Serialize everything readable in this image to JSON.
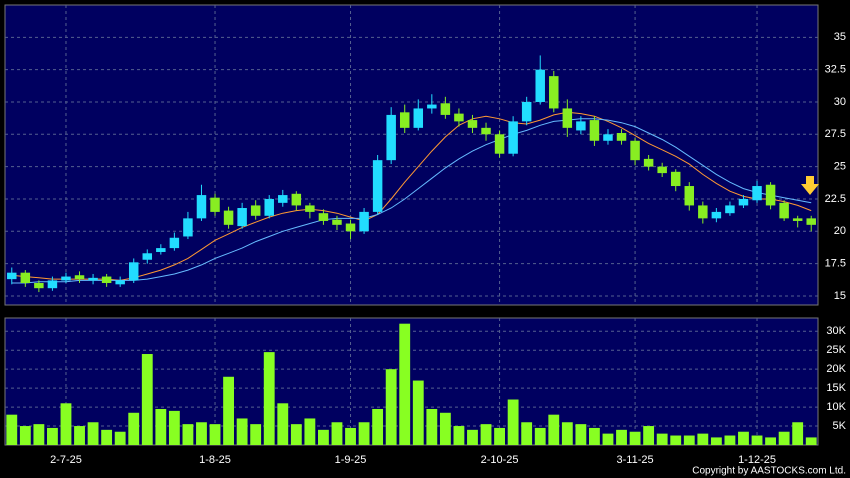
{
  "chart_data": {
    "type": "candlestick",
    "categories": [
      null,
      null,
      null,
      null,
      "2-7-25",
      null,
      null,
      null,
      null,
      null,
      null,
      null,
      null,
      null,
      null,
      "1-8-25",
      null,
      null,
      null,
      null,
      null,
      null,
      null,
      null,
      null,
      "1-9-25",
      null,
      null,
      null,
      null,
      null,
      null,
      null,
      null,
      null,
      null,
      "2-10-25",
      null,
      null,
      null,
      null,
      null,
      null,
      null,
      null,
      null,
      "3-11-25",
      null,
      null,
      null,
      null,
      null,
      null,
      null,
      null,
      "1-12-25",
      null,
      null,
      null,
      null
    ],
    "open": [
      16.3,
      16.8,
      16.0,
      15.6,
      16.2,
      16.6,
      16.2,
      16.5,
      15.9,
      16.2,
      17.8,
      18.4,
      18.7,
      19.6,
      21.0,
      22.6,
      21.6,
      20.4,
      22.0,
      21.2,
      22.2,
      22.9,
      22.0,
      21.4,
      20.9,
      20.6,
      20.0,
      21.5,
      25.5,
      29.2,
      28.0,
      29.5,
      29.9,
      29.1,
      28.6,
      28.0,
      27.5,
      26.0,
      28.5,
      30.0,
      32.0,
      29.5,
      27.8,
      28.6,
      27.0,
      27.6,
      27.0,
      25.6,
      25.0,
      24.6,
      23.5,
      22.0,
      21.0,
      21.4,
      22.0,
      22.4,
      23.6,
      22.2,
      21.0,
      21.0
    ],
    "high": [
      17.2,
      17.0,
      16.2,
      16.5,
      16.8,
      16.9,
      16.7,
      16.7,
      16.5,
      17.9,
      18.6,
      19.0,
      19.9,
      21.5,
      23.6,
      22.9,
      21.9,
      22.2,
      22.4,
      22.8,
      23.2,
      23.1,
      22.2,
      21.7,
      21.2,
      20.9,
      21.8,
      25.9,
      29.6,
      29.8,
      30.2,
      30.6,
      30.4,
      29.5,
      29.0,
      28.4,
      27.8,
      28.9,
      30.4,
      33.6,
      32.4,
      30.2,
      28.9,
      28.9,
      27.9,
      27.9,
      27.2,
      25.9,
      25.3,
      24.8,
      23.8,
      22.3,
      21.8,
      22.3,
      22.8,
      23.9,
      23.8,
      22.4,
      21.2,
      21.2
    ],
    "low": [
      15.9,
      15.7,
      15.3,
      15.4,
      16.0,
      16.0,
      15.9,
      15.7,
      15.7,
      16.0,
      17.5,
      18.2,
      18.5,
      19.4,
      20.8,
      21.2,
      20.2,
      20.2,
      20.9,
      21.0,
      21.9,
      21.6,
      21.0,
      20.5,
      20.1,
      19.4,
      19.8,
      21.3,
      25.2,
      27.6,
      27.8,
      29.1,
      28.7,
      28.1,
      27.6,
      27.0,
      25.7,
      25.8,
      28.2,
      29.8,
      29.2,
      27.3,
      27.5,
      26.6,
      26.7,
      26.7,
      25.1,
      24.7,
      24.2,
      23.1,
      21.6,
      20.6,
      20.7,
      21.2,
      21.8,
      22.2,
      21.7,
      20.8,
      20.3,
      20.0
    ],
    "close": [
      16.8,
      16.0,
      15.6,
      16.2,
      16.5,
      16.3,
      16.4,
      16.0,
      16.2,
      17.6,
      18.3,
      18.7,
      19.5,
      21.0,
      22.8,
      21.5,
      20.5,
      21.8,
      21.2,
      22.5,
      22.8,
      22.0,
      21.5,
      20.8,
      20.5,
      20.0,
      21.5,
      25.5,
      29.0,
      28.0,
      29.5,
      29.8,
      29.0,
      28.5,
      28.0,
      27.5,
      26.0,
      28.5,
      30.0,
      32.5,
      29.5,
      28.0,
      28.5,
      27.0,
      27.5,
      27.0,
      25.5,
      25.0,
      24.5,
      23.5,
      22.0,
      21.0,
      21.5,
      22.0,
      22.5,
      23.5,
      22.0,
      21.0,
      20.8,
      20.5
    ],
    "up_color": "#22ddff",
    "down_color": "#88ee22",
    "moving_averages": [
      {
        "color": "#ff9933",
        "values": [
          16.6,
          16.5,
          16.4,
          16.3,
          16.3,
          16.3,
          16.3,
          16.3,
          16.2,
          16.4,
          16.7,
          17.0,
          17.4,
          17.9,
          18.6,
          19.3,
          19.8,
          20.3,
          20.7,
          21.1,
          21.4,
          21.6,
          21.7,
          21.6,
          21.4,
          21.1,
          20.8,
          21.3,
          22.5,
          23.8,
          25.0,
          26.2,
          27.3,
          28.2,
          28.7,
          28.9,
          28.7,
          28.4,
          28.3,
          28.6,
          29.0,
          29.2,
          29.1,
          28.9,
          28.5,
          28.0,
          27.4,
          26.8,
          26.3,
          25.8,
          25.2,
          24.4,
          23.7,
          23.1,
          22.7,
          22.5,
          22.5,
          22.3,
          22.0,
          21.6
        ]
      },
      {
        "color": "#66bbff",
        "values": [
          16.0,
          16.0,
          16.1,
          16.1,
          16.1,
          16.2,
          16.2,
          16.2,
          16.2,
          16.2,
          16.3,
          16.5,
          16.7,
          17.0,
          17.4,
          17.9,
          18.3,
          18.7,
          19.2,
          19.6,
          20.0,
          20.3,
          20.6,
          20.9,
          21.0,
          21.0,
          21.0,
          21.3,
          21.8,
          22.5,
          23.3,
          24.1,
          24.9,
          25.6,
          26.2,
          26.7,
          27.1,
          27.5,
          27.8,
          28.2,
          28.5,
          28.6,
          28.7,
          28.7,
          28.6,
          28.4,
          28.1,
          27.6,
          27.1,
          26.5,
          25.8,
          25.1,
          24.4,
          23.8,
          23.3,
          23.0,
          22.8,
          22.6,
          22.4,
          22.2
        ]
      }
    ],
    "ylim": [
      14.3,
      37.5
    ],
    "yticks": [
      15,
      17.5,
      20,
      22.5,
      25,
      27.5,
      30,
      32.5,
      35
    ],
    "volume": [
      8000,
      5000,
      5500,
      4500,
      11000,
      5000,
      6000,
      4000,
      3500,
      8500,
      24000,
      9500,
      9000,
      5500,
      6000,
      5500,
      18000,
      7000,
      5500,
      24500,
      11000,
      5500,
      7000,
      4000,
      6000,
      4500,
      6000,
      9500,
      20000,
      32000,
      17000,
      9500,
      8500,
      5000,
      4000,
      5500,
      4500,
      12000,
      6000,
      4500,
      8000,
      6000,
      5500,
      4500,
      3000,
      4000,
      3500,
      5000,
      3000,
      2500,
      2500,
      3000,
      2000,
      2500,
      3500,
      2500,
      2000,
      3500,
      6000,
      2000
    ],
    "volume_color": "#88ff22",
    "volume_ylim": [
      0,
      33500
    ],
    "volume_ticks": [
      {
        "value": 5000,
        "label": "5K"
      },
      {
        "value": 10000,
        "label": "10K"
      },
      {
        "value": 15000,
        "label": "15K"
      },
      {
        "value": 20000,
        "label": "20K"
      },
      {
        "value": 25000,
        "label": "25K"
      },
      {
        "value": 30000,
        "label": "30K"
      }
    ],
    "grid": true,
    "copyright": "Copyright by AASTOCKS.com Ltd."
  }
}
